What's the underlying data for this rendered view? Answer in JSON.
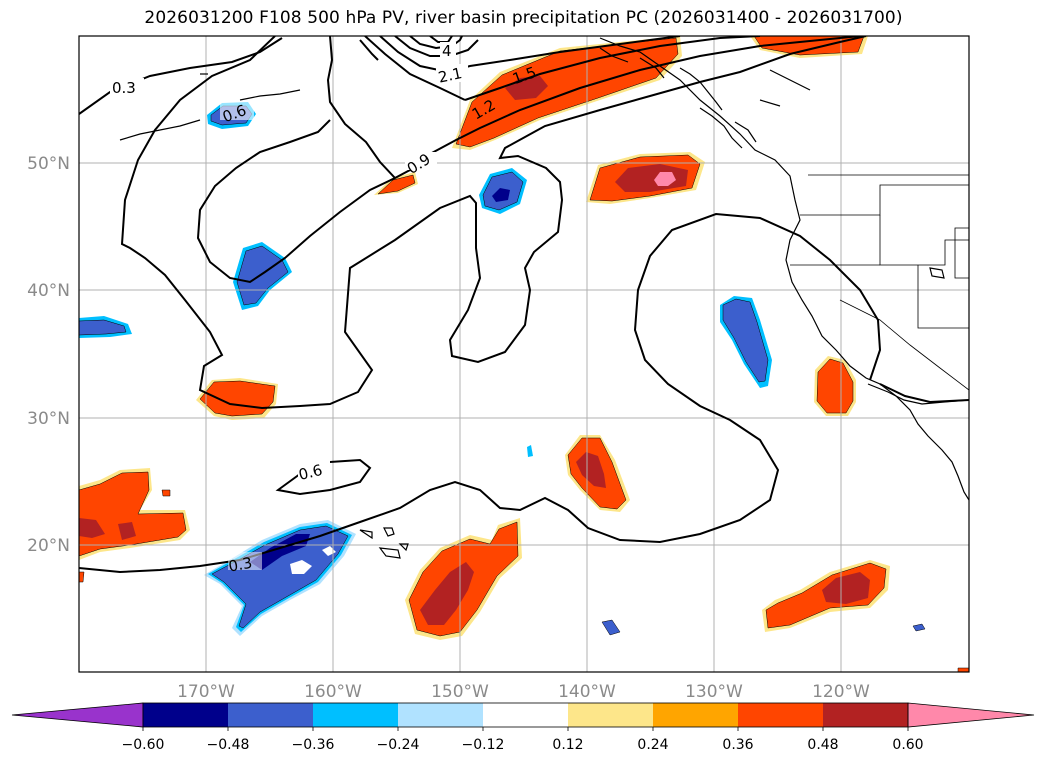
{
  "title": "2026031200 F108 500 hPa PV, river basin precipitation PC (2026031400 - 2026031700)",
  "lon_labels": [
    "170°W",
    "160°W",
    "150°W",
    "140°W",
    "130°W",
    "120°W"
  ],
  "lat_labels": [
    "50°N",
    "40°N",
    "30°N",
    "20°N"
  ],
  "contour_labels": [
    "0.3",
    "0.6",
    "0.9",
    "1.2",
    "1.5",
    "2.1",
    "4",
    "0.3",
    "0.6"
  ],
  "colorbar": {
    "tick_labels": [
      "−0.60",
      "−0.48",
      "−0.36",
      "−0.24",
      "−0.12",
      "0.12",
      "0.24",
      "0.36",
      "0.48",
      "0.60"
    ],
    "colors": [
      "#9933cc",
      "#00008b",
      "#3c5fcd",
      "#00bfff",
      "#b0e2ff",
      "#ffffff",
      "#fde68a",
      "#ffa500",
      "#ff4500",
      "#b22222",
      "#ff88aa"
    ]
  },
  "palette": {
    "pos1": "#fde68a",
    "pos2": "#ffa500",
    "pos3": "#ff4500",
    "pos4": "#b22222",
    "pos5": "#ff88aa",
    "neg1": "#b0e2ff",
    "neg2": "#00bfff",
    "neg3": "#3c5fcd",
    "neg4": "#00008b"
  }
}
